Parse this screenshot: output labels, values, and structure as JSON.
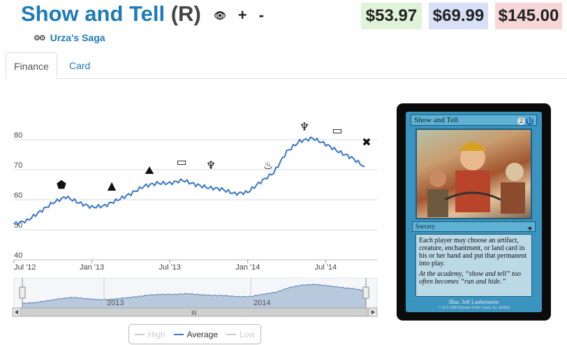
{
  "header": {
    "card_name": "Show and Tell",
    "rarity": "(R)",
    "actions": {
      "eye": "👁",
      "plus": "+",
      "minus": "-"
    },
    "set_name": "Urza's Saga",
    "set_icon": "gears-icon"
  },
  "prices": [
    "$53.97",
    "$69.99",
    "$145.00"
  ],
  "colors": {
    "brand": "#1d7bb8",
    "series_avg": "#3a78c3",
    "price_low_bg": "#dff3d8",
    "price_mid_bg": "#d7e0f6",
    "price_high_bg": "#f6d6d6"
  },
  "tabs": [
    {
      "label": "Finance",
      "active": true
    },
    {
      "label": "Card",
      "active": false
    }
  ],
  "chart_data": {
    "type": "line",
    "y_ticks": [
      "40",
      "50",
      "60",
      "70",
      "80"
    ],
    "ylim": [
      40,
      90
    ],
    "x_ticks": [
      "Jul '12",
      "Jan '13",
      "Jul '13",
      "Jan '14",
      "Jul '14"
    ],
    "navigator_labels": [
      "2013",
      "2014"
    ],
    "legend": [
      {
        "name": "High",
        "visible": false
      },
      {
        "name": "Average",
        "visible": true
      },
      {
        "name": "Low",
        "visible": false
      }
    ],
    "series": [
      {
        "name": "Average",
        "x": [
          "2012-07",
          "2012-08",
          "2012-09",
          "2012-10",
          "2012-11",
          "2012-12",
          "2013-01",
          "2013-02",
          "2013-03",
          "2013-04",
          "2013-05",
          "2013-06",
          "2013-07",
          "2013-08",
          "2013-09",
          "2013-10",
          "2013-11",
          "2013-12",
          "2014-01",
          "2014-02",
          "2014-03",
          "2014-04",
          "2014-05",
          "2014-06",
          "2014-07",
          "2014-08",
          "2014-09",
          "2014-10"
        ],
        "values": [
          52,
          53,
          56,
          59,
          61,
          59,
          57.5,
          58,
          60,
          62,
          64.5,
          65.5,
          65.5,
          66.5,
          65,
          64,
          63.5,
          62,
          62.5,
          66,
          69,
          76,
          79.5,
          80.5,
          78.5,
          76,
          74,
          71
        ]
      }
    ],
    "grid": true
  },
  "card_image": {
    "name": "Show and Tell",
    "mana": [
      "2",
      "U"
    ],
    "type": "Sorcery",
    "rules_text": "Each player may choose an artifact, creature, enchantment, or land card in his or her hand and put that permanent into play.",
    "flavor_text": "At the academy, “show and tell” too often becomes “run and hide.”",
    "illustrator": "Illus. Jeff Laubenstein",
    "copyright": "™ & © 1998 Wizards of the Coast, Inc. 94/350"
  }
}
